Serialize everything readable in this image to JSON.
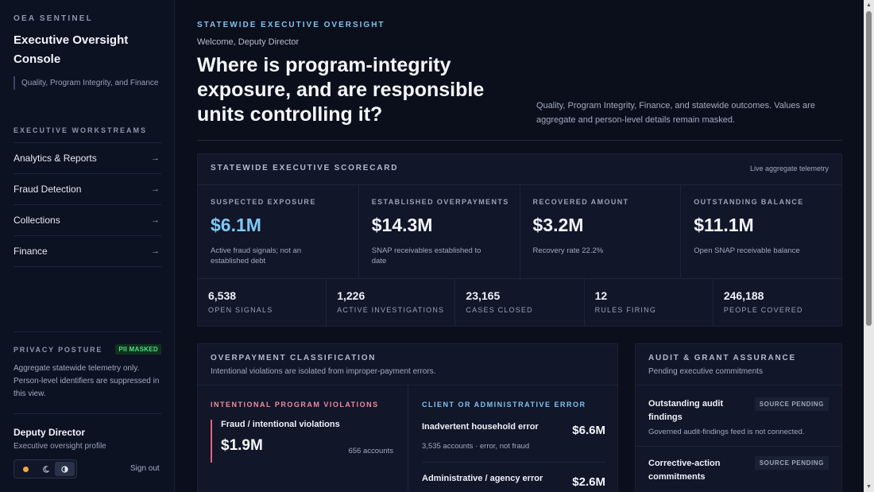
{
  "sidebar": {
    "brand": "OEA SENTINEL",
    "console_title": "Executive Oversight Console",
    "console_subtitle": "Quality, Program Integrity, and Finance",
    "workstreams_heading": "EXECUTIVE WORKSTREAMS",
    "nav": [
      {
        "label": "Analytics & Reports",
        "icon": "arrow-right-icon",
        "glyph": "→"
      },
      {
        "label": "Fraud Detection",
        "icon": "arrow-right-icon",
        "glyph": "→"
      },
      {
        "label": "Collections",
        "icon": "arrow-right-icon",
        "glyph": "→"
      },
      {
        "label": "Finance",
        "icon": "arrow-right-icon",
        "glyph": "→"
      }
    ],
    "privacy": {
      "label": "PRIVACY POSTURE",
      "badge": "PII MASKED",
      "text": "Aggregate statewide telemetry only. Person-level identifiers are suppressed in this view."
    },
    "profile": {
      "name": "Deputy Director",
      "role": "Executive oversight profile"
    },
    "theme_options": [
      "sun-icon",
      "moon-icon",
      "contrast-icon"
    ],
    "sign_out": "Sign out"
  },
  "header": {
    "eyebrow": "STATEWIDE EXECUTIVE OVERSIGHT",
    "welcome": "Welcome, Deputy Director",
    "headline": "Where is program-integrity exposure, and are responsible units controlling it?",
    "intro": "Quality, Program Integrity, Finance, and statewide outcomes. Values are aggregate and person-level details remain masked."
  },
  "scorecard": {
    "title": "STATEWIDE EXECUTIVE SCORECARD",
    "status": "Live aggregate telemetry",
    "metrics": [
      {
        "label": "SUSPECTED EXPOSURE",
        "value": "$6.1M",
        "note": "Active fraud signals; not an established debt"
      },
      {
        "label": "ESTABLISHED OVERPAYMENTS",
        "value": "$14.3M",
        "note": "SNAP receivables established to date"
      },
      {
        "label": "RECOVERED AMOUNT",
        "value": "$3.2M",
        "note": "Recovery rate 22.2%"
      },
      {
        "label": "OUTSTANDING BALANCE",
        "value": "$11.1M",
        "note": "Open SNAP receivable balance"
      }
    ],
    "counts": [
      {
        "value": "6,538",
        "label": "OPEN SIGNALS"
      },
      {
        "value": "1,226",
        "label": "ACTIVE INVESTIGATIONS"
      },
      {
        "value": "23,165",
        "label": "CASES CLOSED"
      },
      {
        "value": "12",
        "label": "RULES FIRING"
      },
      {
        "value": "246,188",
        "label": "PEOPLE COVERED"
      }
    ]
  },
  "classification": {
    "title": "OVERPAYMENT CLASSIFICATION",
    "subtitle": "Intentional violations are isolated from improper-payment errors.",
    "intentional": {
      "heading": "INTENTIONAL PROGRAM VIOLATIONS",
      "item_title": "Fraud / intentional violations",
      "value": "$1.9M",
      "accounts": "656 accounts"
    },
    "errors": {
      "heading": "CLIENT OR ADMINISTRATIVE ERROR",
      "rows": [
        {
          "title": "Inadvertent household error",
          "value": "$6.6M",
          "note": "3,535 accounts · error, not fraud"
        },
        {
          "title": "Administrative / agency error",
          "value": "$2.6M"
        }
      ]
    }
  },
  "audit": {
    "title": "AUDIT & GRANT ASSURANCE",
    "subtitle": "Pending executive commitments",
    "items": [
      {
        "title": "Outstanding audit findings",
        "badge": "SOURCE PENDING",
        "note": "Governed audit-findings feed is not connected."
      },
      {
        "title": "Corrective-action commitments",
        "badge": "SOURCE PENDING"
      }
    ]
  },
  "colors": {
    "background": "#0b0f1c",
    "accent_blue": "#7fc4ee",
    "accent_red": "#e8607c",
    "badge_green": "#4ee083"
  }
}
